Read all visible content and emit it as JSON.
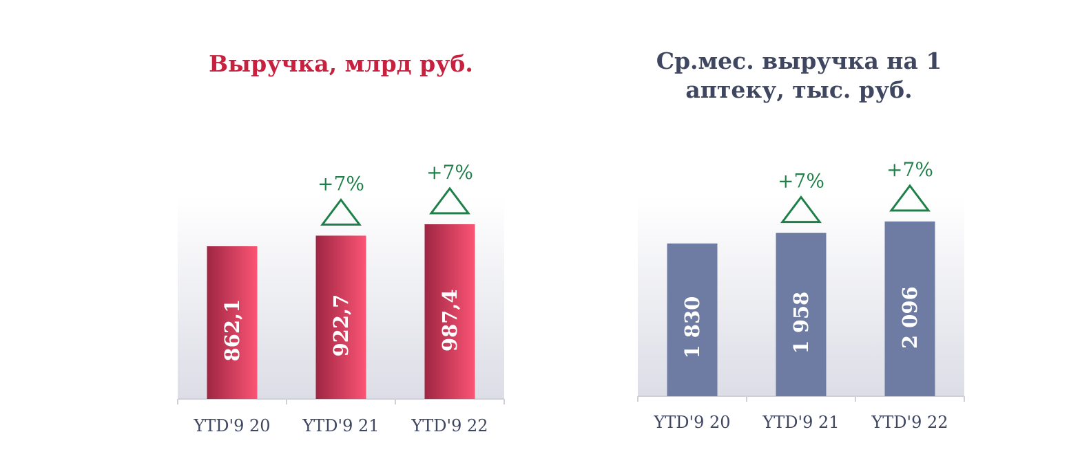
{
  "colors": {
    "left_title": "#c8213f",
    "right_title": "#3e4660",
    "left_bar_dark": "#9e2643",
    "left_bar_light": "#fc5474",
    "right_bar": "#6e7ca3",
    "growth": "#1e8048",
    "axis": "#d0d0d6",
    "category_text": "#3e4660"
  },
  "chart_data": [
    {
      "type": "bar",
      "title": "Выручка, млрд руб.",
      "categories": [
        "YTD'9 20",
        "YTD'9 21",
        "YTD'9 22"
      ],
      "values": [
        862.1,
        922.7,
        987.4
      ],
      "value_labels": [
        "862,1",
        "922,7",
        "987,4"
      ],
      "growth_labels": [
        "",
        "+7%",
        "+7%"
      ],
      "growth_icon": "triangle-up-outline-icon",
      "value_label_orientation": "vertical",
      "grid": false,
      "legend": "none"
    },
    {
      "type": "bar",
      "title": "Ср.мес. выручка на 1 аптеку, тыс. руб.",
      "categories": [
        "YTD'9 20",
        "YTD'9 21",
        "YTD'9 22"
      ],
      "values": [
        1830,
        1958,
        2096
      ],
      "value_labels": [
        "1 830",
        "1 958",
        "2 096"
      ],
      "growth_labels": [
        "",
        "+7%",
        "+7%"
      ],
      "growth_icon": "triangle-up-outline-icon",
      "value_label_orientation": "vertical",
      "grid": false,
      "legend": "none"
    }
  ]
}
